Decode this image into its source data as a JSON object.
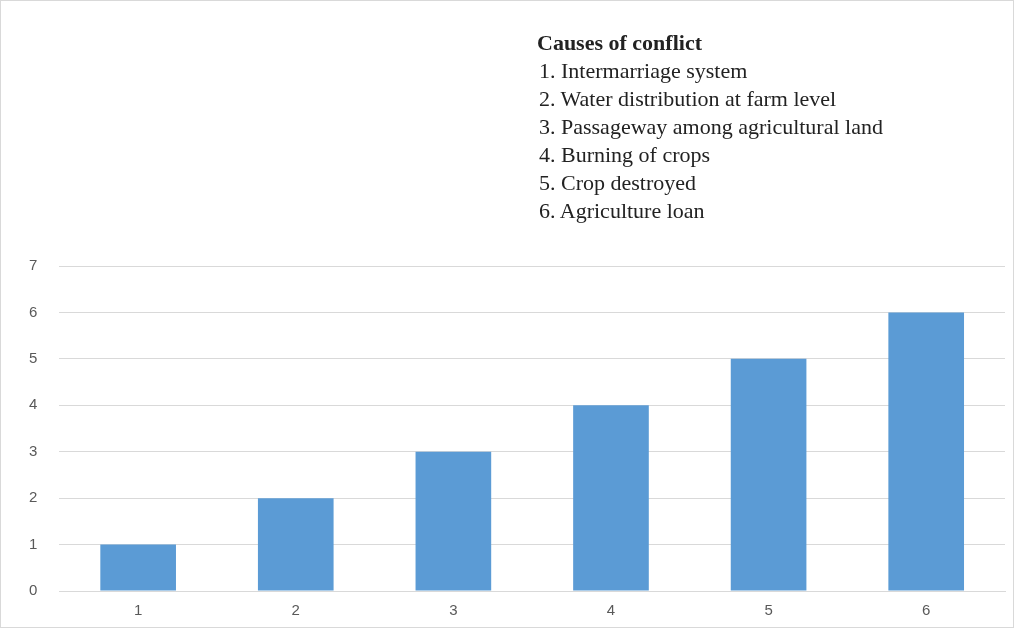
{
  "chart_data": {
    "type": "bar",
    "title": "Causes of conflict",
    "annotations": [
      "1. Intermarriage  system",
      "2. Water distribution at farm level",
      "3. Passageway among agricultural land",
      "4. Burning of crops",
      "5. Crop destroyed",
      "6. Agriculture loan"
    ],
    "categories": [
      "1",
      "2",
      "3",
      "4",
      "5",
      "6"
    ],
    "values": [
      1,
      2,
      3,
      4,
      5,
      6
    ],
    "color": "#5b9bd5",
    "ylim": [
      0,
      7
    ],
    "yticks": [
      0,
      1,
      2,
      3,
      4,
      5,
      6,
      7
    ],
    "grid": "y"
  }
}
